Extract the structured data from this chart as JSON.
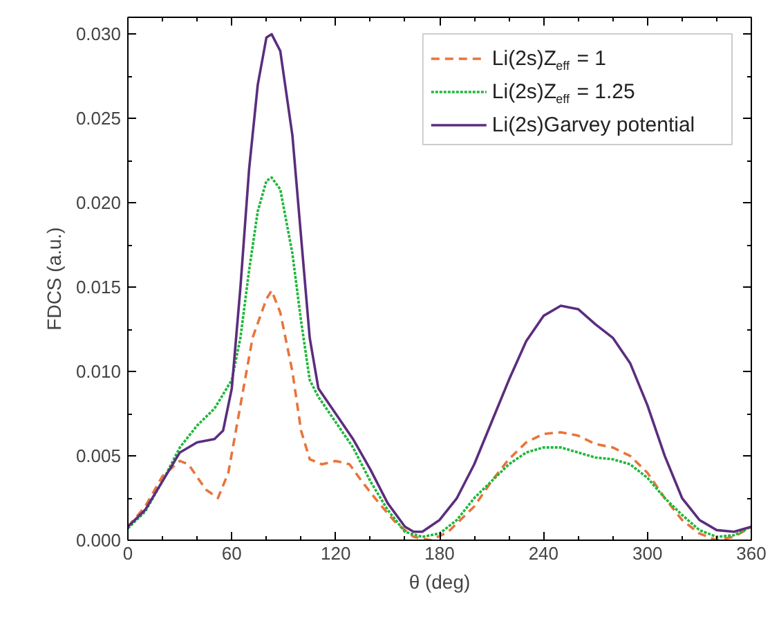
{
  "chart_data": {
    "type": "line",
    "xlabel": "θ (deg)",
    "ylabel": "FDCS (a.u.)",
    "xlim": [
      0,
      360
    ],
    "xticks": [
      0,
      60,
      120,
      180,
      240,
      300,
      360
    ],
    "ylim": [
      0,
      0.031
    ],
    "yticks": [
      {
        "value": 0,
        "label": "0.000"
      },
      {
        "value": 0.005,
        "label": "0.005"
      },
      {
        "value": 0.01,
        "label": "0.010"
      },
      {
        "value": 0.015,
        "label": "0.015"
      },
      {
        "value": 0.02,
        "label": "0.020"
      },
      {
        "value": 0.025,
        "label": "0.025"
      },
      {
        "value": 0.03,
        "label": "0.030"
      }
    ],
    "grid": false,
    "legend": "top right",
    "series": [
      {
        "name": "Li(2s)Z$_{eff}$ = 1",
        "color": "#e8743b",
        "line_style": "dashed",
        "x": [
          0,
          10,
          20,
          30,
          35,
          45,
          52,
          58,
          65,
          72,
          80,
          83,
          88,
          95,
          100,
          105,
          112,
          120,
          128,
          135,
          145,
          155,
          165,
          175,
          185,
          200,
          210,
          220,
          230,
          240,
          250,
          260,
          270,
          280,
          290,
          300,
          310,
          320,
          330,
          340,
          350,
          360
        ],
        "values": [
          0.0008,
          0.002,
          0.0038,
          0.0047,
          0.0045,
          0.003,
          0.0025,
          0.004,
          0.008,
          0.012,
          0.0143,
          0.0148,
          0.0135,
          0.01,
          0.0065,
          0.0048,
          0.0045,
          0.0047,
          0.0045,
          0.0035,
          0.0022,
          0.001,
          0.0002,
          0.0,
          0.0005,
          0.002,
          0.0035,
          0.0048,
          0.0058,
          0.0063,
          0.0064,
          0.0062,
          0.0057,
          0.0055,
          0.005,
          0.004,
          0.0025,
          0.0012,
          0.0004,
          0.0,
          0.0002,
          0.0008
        ]
      },
      {
        "name": "Li(2s)Z$_{eff}$ = 1.25",
        "color": "#1db83a",
        "line_style": "dotted",
        "x": [
          0,
          10,
          20,
          30,
          40,
          50,
          60,
          65,
          70,
          75,
          80,
          83,
          88,
          95,
          100,
          105,
          110,
          120,
          130,
          140,
          150,
          160,
          170,
          180,
          190,
          200,
          210,
          220,
          230,
          240,
          250,
          260,
          270,
          280,
          290,
          300,
          310,
          320,
          330,
          340,
          350,
          360
        ],
        "values": [
          0.0007,
          0.0017,
          0.0035,
          0.0055,
          0.0068,
          0.0078,
          0.0095,
          0.012,
          0.016,
          0.0195,
          0.0213,
          0.0215,
          0.0208,
          0.017,
          0.013,
          0.0095,
          0.0085,
          0.007,
          0.0055,
          0.0035,
          0.0018,
          0.0005,
          0.0002,
          0.0004,
          0.0012,
          0.0025,
          0.0035,
          0.0045,
          0.0052,
          0.0055,
          0.0055,
          0.0052,
          0.0049,
          0.0048,
          0.0045,
          0.0037,
          0.0025,
          0.0015,
          0.0006,
          0.0002,
          0.0003,
          0.0008
        ]
      },
      {
        "name": "Li(2s)Garvey potential",
        "color": "#5b2d7e",
        "line_style": "solid",
        "x": [
          0,
          10,
          20,
          30,
          40,
          50,
          55,
          60,
          65,
          70,
          75,
          80,
          83,
          88,
          95,
          100,
          105,
          110,
          120,
          130,
          140,
          150,
          160,
          165,
          170,
          180,
          190,
          200,
          210,
          220,
          230,
          240,
          250,
          260,
          270,
          280,
          290,
          300,
          310,
          320,
          330,
          340,
          350,
          360
        ],
        "values": [
          0.0008,
          0.0018,
          0.0035,
          0.0052,
          0.0058,
          0.006,
          0.0065,
          0.009,
          0.015,
          0.022,
          0.027,
          0.0298,
          0.03,
          0.029,
          0.024,
          0.018,
          0.012,
          0.009,
          0.0075,
          0.006,
          0.0042,
          0.0022,
          0.0008,
          0.0005,
          0.0005,
          0.0012,
          0.0025,
          0.0045,
          0.007,
          0.0095,
          0.0118,
          0.0133,
          0.0139,
          0.0137,
          0.0128,
          0.012,
          0.0105,
          0.008,
          0.005,
          0.0025,
          0.0012,
          0.0006,
          0.0005,
          0.0008
        ]
      }
    ]
  }
}
